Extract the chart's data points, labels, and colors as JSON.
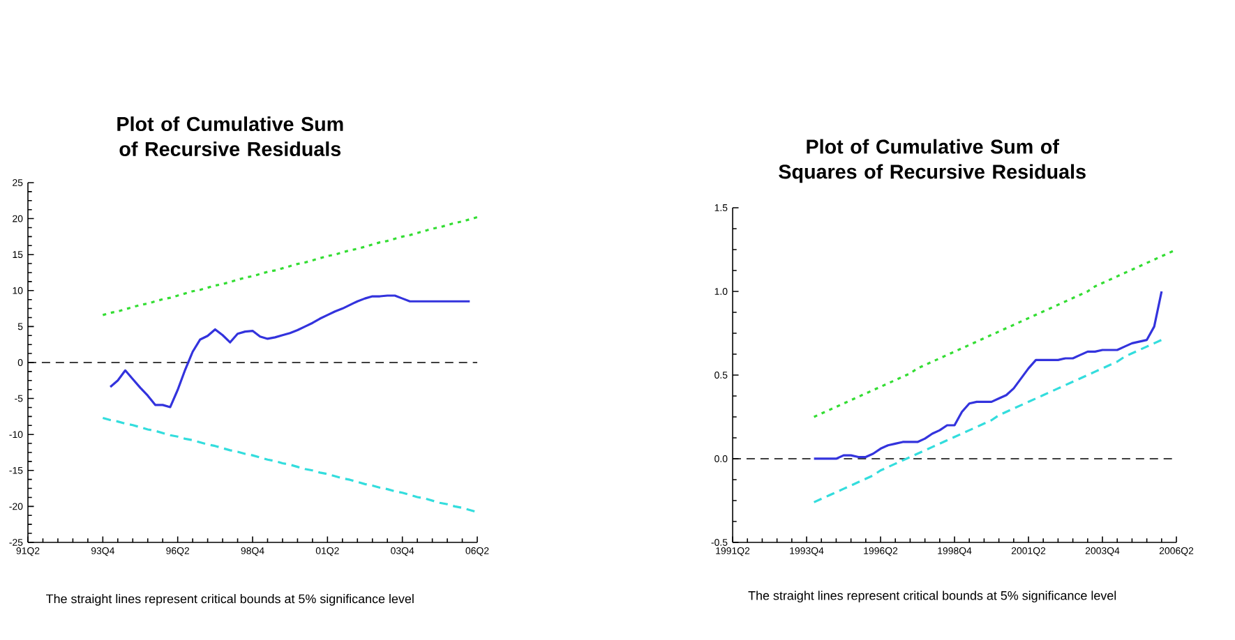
{
  "chart_data": [
    {
      "type": "line",
      "title": "Plot of Cumulative Sum of Recursive Residuals",
      "annotations": [
        "The straight lines represent critical bounds at 5% significance level"
      ],
      "categories": [
        "91Q2",
        null,
        null,
        null,
        null,
        null,
        null,
        null,
        null,
        null,
        "93Q4",
        null,
        null,
        null,
        null,
        null,
        null,
        null,
        null,
        null,
        "96Q2",
        null,
        null,
        null,
        null,
        null,
        null,
        null,
        null,
        null,
        "98Q4",
        null,
        null,
        null,
        null,
        null,
        null,
        null,
        null,
        null,
        "01Q2",
        null,
        null,
        null,
        null,
        null,
        null,
        null,
        null,
        null,
        "03Q4",
        null,
        null,
        null,
        null,
        null,
        null,
        null,
        null,
        null,
        "06Q2"
      ],
      "ylim": [
        -25,
        25
      ],
      "yticks": [
        -25,
        -20,
        -15,
        -10,
        -5,
        0,
        5,
        10,
        15,
        20,
        25
      ],
      "ref_lines": [
        {
          "axis": "y",
          "value": 0,
          "color": "#000000",
          "line_style": "dashed"
        }
      ],
      "series": [
        {
          "color": "#3333dd",
          "line_style": "solid",
          "values": [
            null,
            null,
            null,
            null,
            null,
            null,
            null,
            null,
            null,
            null,
            null,
            -3.4,
            -2.5,
            -1.1,
            -2.3,
            -3.5,
            -4.6,
            -5.9,
            -5.9,
            -6.2,
            -3.8,
            -1.0,
            1.5,
            3.2,
            3.7,
            4.6,
            3.8,
            2.8,
            4.0,
            4.3,
            4.4,
            3.6,
            3.3,
            3.5,
            3.8,
            4.1,
            4.5,
            5.0,
            5.5,
            6.1,
            6.6,
            7.1,
            7.5,
            8.0,
            8.5,
            8.9,
            9.2,
            9.2,
            9.3,
            9.3,
            8.9,
            8.5,
            8.5,
            8.5,
            8.5,
            8.5,
            8.5,
            8.5,
            8.5,
            8.5,
            null
          ]
        },
        {
          "color": "#33dd33",
          "line_style": "dotted",
          "values": [
            null,
            null,
            null,
            null,
            null,
            null,
            null,
            null,
            null,
            null,
            6.6,
            6.9,
            7.1,
            7.4,
            7.7,
            8.0,
            8.2,
            8.5,
            8.8,
            9.0,
            9.3,
            9.6,
            9.9,
            10.1,
            10.4,
            10.7,
            10.9,
            11.2,
            11.5,
            11.8,
            12.0,
            12.3,
            12.6,
            12.8,
            13.1,
            13.4,
            13.7,
            13.9,
            14.2,
            14.5,
            14.8,
            15.0,
            15.3,
            15.6,
            15.8,
            16.1,
            16.4,
            16.7,
            16.9,
            17.2,
            17.5,
            17.7,
            18.0,
            18.3,
            18.6,
            18.8,
            19.1,
            19.4,
            19.6,
            19.9,
            20.2
          ]
        },
        {
          "color": "#33dddd",
          "line_style": "dashed",
          "values": [
            null,
            null,
            null,
            null,
            null,
            null,
            null,
            null,
            null,
            null,
            -7.7,
            -8.0,
            -8.2,
            -8.5,
            -8.7,
            -9.0,
            -9.3,
            -9.5,
            -9.8,
            -10.1,
            -10.3,
            -10.6,
            -10.8,
            -11.1,
            -11.4,
            -11.6,
            -11.9,
            -12.2,
            -12.4,
            -12.7,
            -12.9,
            -13.2,
            -13.5,
            -13.7,
            -14.0,
            -14.2,
            -14.5,
            -14.8,
            -15.0,
            -15.3,
            -15.5,
            -15.8,
            -16.1,
            -16.3,
            -16.6,
            -16.9,
            -17.1,
            -17.4,
            -17.6,
            -17.9,
            -18.1,
            -18.4,
            -18.7,
            -18.9,
            -19.2,
            -19.5,
            -19.7,
            -20.0,
            -20.2,
            -20.5,
            -20.8
          ]
        }
      ]
    },
    {
      "type": "line",
      "title": "Plot of Cumulative Sum of Squares of Recursive Residuals",
      "annotations": [
        "The straight lines represent critical bounds at 5% significance level"
      ],
      "categories": [
        "1991Q2",
        null,
        null,
        null,
        null,
        null,
        null,
        null,
        null,
        null,
        "1993Q4",
        null,
        null,
        null,
        null,
        null,
        null,
        null,
        null,
        null,
        "1996Q2",
        null,
        null,
        null,
        null,
        null,
        null,
        null,
        null,
        null,
        "1998Q4",
        null,
        null,
        null,
        null,
        null,
        null,
        null,
        null,
        null,
        "2001Q2",
        null,
        null,
        null,
        null,
        null,
        null,
        null,
        null,
        null,
        "2003Q4",
        null,
        null,
        null,
        null,
        null,
        null,
        null,
        null,
        null,
        "2006Q2"
      ],
      "ylim": [
        -0.5,
        1.5
      ],
      "yticks": [
        {
          "value": -0.5,
          "label": "-0.5"
        },
        {
          "value": 0,
          "label": "0.0"
        },
        {
          "value": 0.5,
          "label": "0.5"
        },
        {
          "value": 1,
          "label": "1.0"
        },
        {
          "value": 1.5,
          "label": "1.5"
        }
      ],
      "ref_lines": [
        {
          "axis": "y",
          "value": 0,
          "color": "#000000",
          "line_style": "dashed"
        }
      ],
      "series": [
        {
          "color": "#3333dd",
          "line_style": "solid",
          "values": [
            null,
            null,
            null,
            null,
            null,
            null,
            null,
            null,
            null,
            null,
            null,
            0,
            0,
            0,
            0,
            0.02,
            0.02,
            0.01,
            0.01,
            0.03,
            0.06,
            0.08,
            0.09,
            0.1,
            0.1,
            0.1,
            0.12,
            0.15,
            0.17,
            0.2,
            0.2,
            0.28,
            0.33,
            0.34,
            0.34,
            0.34,
            0.36,
            0.38,
            0.42,
            0.48,
            0.54,
            0.59,
            0.59,
            0.59,
            0.59,
            0.6,
            0.6,
            0.62,
            0.64,
            0.64,
            0.65,
            0.65,
            0.65,
            0.67,
            0.69,
            0.7,
            0.71,
            0.79,
            1.0,
            null,
            null
          ]
        },
        {
          "color": "#33dd33",
          "line_style": "dotted",
          "values": [
            null,
            null,
            null,
            null,
            null,
            null,
            null,
            null,
            null,
            null,
            null,
            0.25,
            0.27,
            0.29,
            0.31,
            0.33,
            0.35,
            0.37,
            0.39,
            0.41,
            0.43,
            0.45,
            0.47,
            0.49,
            0.51,
            0.54,
            0.56,
            0.58,
            0.6,
            0.62,
            0.64,
            0.66,
            0.68,
            0.7,
            0.72,
            0.74,
            0.76,
            0.78,
            0.8,
            0.82,
            0.84,
            0.86,
            0.88,
            0.9,
            0.92,
            0.94,
            0.96,
            0.98,
            1.0,
            1.03,
            1.05,
            1.07,
            1.09,
            1.11,
            1.13,
            1.15,
            1.17,
            1.19,
            1.21,
            1.23,
            1.25
          ]
        },
        {
          "color": "#33dddd",
          "line_style": "dashed",
          "values": [
            null,
            null,
            null,
            null,
            null,
            null,
            null,
            null,
            null,
            null,
            null,
            -0.26,
            -0.24,
            -0.22,
            -0.2,
            -0.18,
            -0.16,
            -0.14,
            -0.12,
            -0.1,
            -0.07,
            -0.05,
            -0.03,
            -0.01,
            0.01,
            0.03,
            0.05,
            0.07,
            0.09,
            0.11,
            0.13,
            0.15,
            0.17,
            0.19,
            0.21,
            0.23,
            0.26,
            0.28,
            0.3,
            0.32,
            0.34,
            0.36,
            0.38,
            0.4,
            0.42,
            0.44,
            0.46,
            0.48,
            0.5,
            0.52,
            0.54,
            0.56,
            0.58,
            0.61,
            0.63,
            0.65,
            0.67,
            0.69,
            0.71,
            null,
            null
          ]
        }
      ]
    }
  ]
}
